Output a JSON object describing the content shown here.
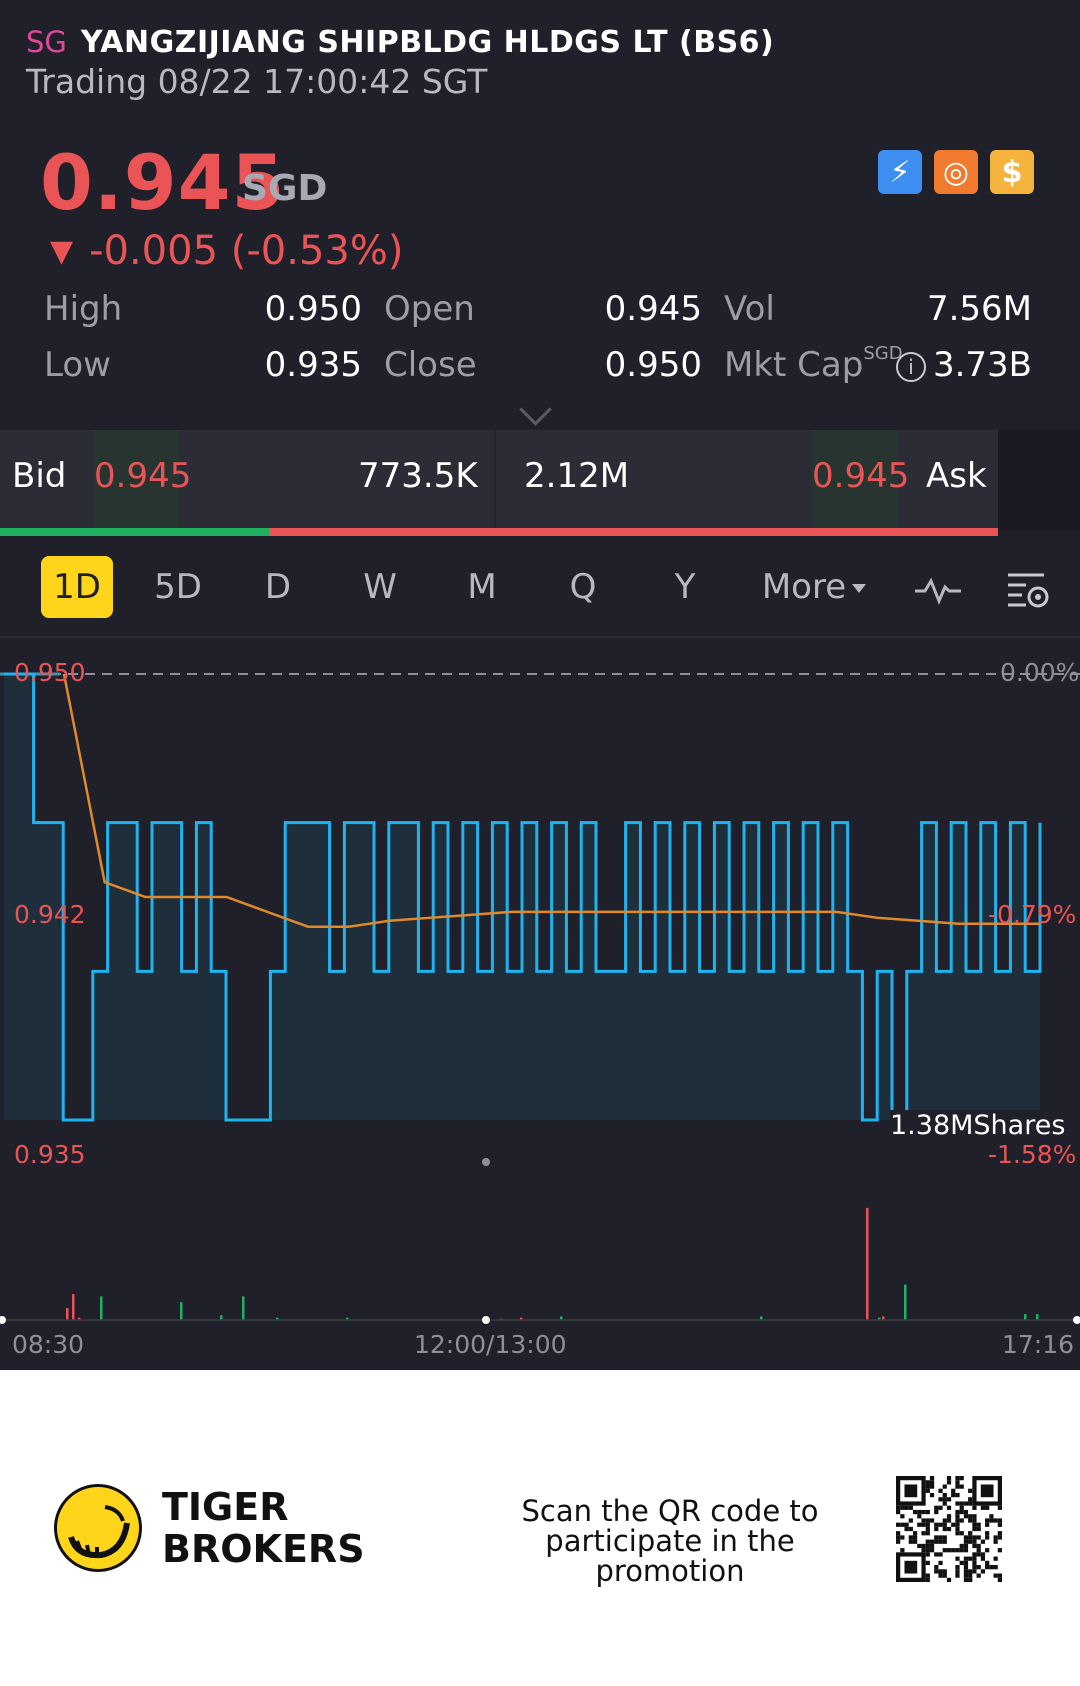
{
  "header": {
    "market_badge": "SG",
    "title": "YANGZIJIANG SHIPBLDG HLDGS LT (BS6)",
    "status": "Trading 08/22 17:00:42 SGT"
  },
  "quote": {
    "price": "0.945",
    "currency": "SGD",
    "change": "-0.005 (-0.53%)",
    "colors": {
      "down": "#ea5457",
      "up": "#1fb160"
    }
  },
  "header_icons": [
    "lightning-icon",
    "chart-circle-icon",
    "dollar-icon"
  ],
  "stats": {
    "high_label": "High",
    "high": "0.950",
    "low_label": "Low",
    "low": "0.935",
    "open_label": "Open",
    "open": "0.945",
    "close_label": "Close",
    "close": "0.950",
    "vol_label": "Vol",
    "vol": "7.56M",
    "mktcap_label": "Mkt Cap",
    "mktcap_unit": "SGD",
    "mktcap": "3.73B"
  },
  "bidask": {
    "bid_label": "Bid",
    "bid_price": "0.945",
    "bid_size": "773.5K",
    "ask_size": "2.12M",
    "ask_price": "0.945",
    "ask_label": "Ask",
    "bid_ratio": 0.27
  },
  "tabs": [
    "1D",
    "5D",
    "D",
    "W",
    "M",
    "Q",
    "Y",
    "More"
  ],
  "active_tab": "1D",
  "chart_data": {
    "type": "line",
    "y_labels_left": [
      "0.950",
      "0.942",
      "0.935"
    ],
    "y_labels_right": [
      "0.00%",
      "-0.79%",
      "-1.58%"
    ],
    "ylim": [
      0.935,
      0.95
    ],
    "x_labels": [
      "08:30",
      "12:00/13:00",
      "17:16"
    ],
    "volume_label": "1.38MShares",
    "series": [
      {
        "values": [
          0.95,
          0.95,
          0.945,
          0.945,
          0.935,
          0.935,
          0.94,
          0.945,
          0.945,
          0.94,
          0.945,
          0.945,
          0.94,
          0.945,
          0.94,
          0.935,
          0.935,
          0.935,
          0.94,
          0.945,
          0.945,
          0.945,
          0.94,
          0.945,
          0.945,
          0.94,
          0.945,
          0.945,
          0.94,
          0.945,
          0.94,
          0.945,
          0.94,
          0.945,
          0.94,
          0.945,
          0.94,
          0.945,
          0.94,
          0.945,
          0.94,
          0.94,
          0.945,
          0.94,
          0.945,
          0.94,
          0.945,
          0.94,
          0.945,
          0.94,
          0.945,
          0.94,
          0.945,
          0.94,
          0.945,
          0.94,
          0.945,
          0.94,
          0.935,
          0.94,
          0.935,
          0.94,
          0.945,
          0.94,
          0.945,
          0.94,
          0.945,
          0.94,
          0.945,
          0.94,
          0.945
        ]
      },
      {
        "values": [
          0.95,
          0.943,
          0.9425,
          0.9425,
          0.9425,
          0.942,
          0.9415,
          0.9415,
          0.9417,
          0.9418,
          0.9419,
          0.942,
          0.942,
          0.942,
          0.942,
          0.942,
          0.942,
          0.942,
          0.942,
          0.942,
          0.9418,
          0.9417,
          0.9416,
          0.9416,
          0.9416
        ]
      }
    ],
    "volume_red": [
      0.1,
      0.22,
      0.02,
      0.01,
      0.02,
      0.95,
      0.03
    ],
    "volume_green": [
      0.2,
      0.15,
      0.04,
      0.2,
      0.02,
      0.02,
      0.03,
      0.03,
      0.02,
      0.3,
      0.05,
      0.05
    ],
    "colors": {
      "price_line": "#1fb4f0",
      "avg_line": "#e0892b",
      "area_fill": "#1f3a4a"
    }
  },
  "footer": {
    "brand_line1": "TIGER",
    "brand_line2": "BROKERS",
    "scan_text": "Scan the QR code to participate in the promotion"
  }
}
